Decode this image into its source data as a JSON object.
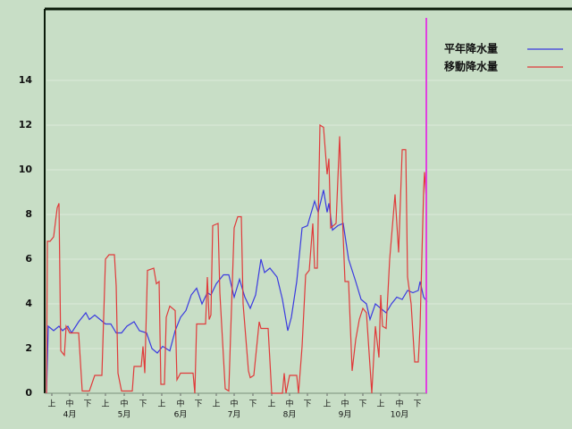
{
  "chart_data": {
    "type": "line",
    "ylim": [
      0,
      17.2
    ],
    "yticks": [
      0,
      2,
      4,
      6,
      8,
      10,
      12,
      14
    ],
    "xlim": [
      0,
      213
    ],
    "xticks": [
      {
        "value": 3,
        "label": "上"
      },
      {
        "value": 13,
        "label": "中"
      },
      {
        "value": 23,
        "label": "下"
      },
      {
        "value": 33,
        "label": "上"
      },
      {
        "value": 43.5,
        "label": "中"
      },
      {
        "value": 54,
        "label": "下"
      },
      {
        "value": 64.5,
        "label": "上"
      },
      {
        "value": 75,
        "label": "中"
      },
      {
        "value": 85,
        "label": "下"
      },
      {
        "value": 95,
        "label": "上"
      },
      {
        "value": 105,
        "label": "中"
      },
      {
        "value": 115.5,
        "label": "下"
      },
      {
        "value": 126,
        "label": "上"
      },
      {
        "value": 136,
        "label": "中"
      },
      {
        "value": 146,
        "label": "下"
      },
      {
        "value": 157,
        "label": "上"
      },
      {
        "value": 167,
        "label": "中"
      },
      {
        "value": 177,
        "label": "下"
      },
      {
        "value": 187,
        "label": "上"
      },
      {
        "value": 197.5,
        "label": "中"
      },
      {
        "value": 207.5,
        "label": "下"
      }
    ],
    "month_ticks": [
      {
        "value": 13,
        "label": "4月"
      },
      {
        "value": 43.5,
        "label": "5月"
      },
      {
        "value": 75,
        "label": "6月"
      },
      {
        "value": 105,
        "label": "7月"
      },
      {
        "value": 136,
        "label": "8月"
      },
      {
        "value": 167,
        "label": "9月"
      },
      {
        "value": 197.5,
        "label": "10月"
      }
    ],
    "grid": true,
    "legend": "top-right",
    "marker": {
      "x": 212.5,
      "color": "#e040e0"
    },
    "series": [
      {
        "name": "平年降水量",
        "color": "#3a3ae0",
        "x": [
          0,
          1,
          4,
          7,
          9,
          12,
          14,
          18,
          22,
          24,
          27,
          30,
          33,
          36,
          39,
          42,
          45,
          49,
          52,
          56,
          59,
          62,
          65,
          69,
          72,
          75,
          78,
          81,
          84,
          87,
          90,
          92,
          95,
          99,
          102,
          105,
          108,
          111,
          114,
          117,
          120,
          122,
          125,
          129,
          132,
          135,
          137,
          140,
          143,
          146,
          150,
          152,
          155,
          157,
          158,
          160,
          163,
          166,
          169,
          173,
          176,
          179,
          181,
          184,
          187,
          190,
          193,
          196,
          199,
          202,
          205,
          208,
          209,
          211,
          213
        ],
        "values": [
          0,
          3.0,
          2.8,
          3.0,
          2.8,
          3.0,
          2.7,
          3.2,
          3.6,
          3.3,
          3.5,
          3.3,
          3.1,
          3.1,
          2.7,
          2.7,
          3.0,
          3.2,
          2.8,
          2.7,
          2.0,
          1.8,
          2.1,
          1.9,
          2.8,
          3.4,
          3.7,
          4.4,
          4.7,
          4.0,
          4.5,
          4.4,
          4.9,
          5.3,
          5.3,
          4.3,
          5.1,
          4.3,
          3.8,
          4.4,
          6.0,
          5.4,
          5.6,
          5.2,
          4.2,
          2.8,
          3.4,
          5.0,
          7.4,
          7.5,
          8.6,
          8.1,
          9.1,
          8.1,
          8.5,
          7.3,
          7.5,
          7.6,
          6.0,
          5.0,
          4.2,
          4.0,
          3.3,
          4.0,
          3.8,
          3.6,
          4.0,
          4.3,
          4.2,
          4.6,
          4.5,
          4.6,
          5.0,
          4.3,
          4.1
        ]
      },
      {
        "name": "移動降水量",
        "color": "#e03a3a",
        "x": [
          0,
          0.5,
          2,
          4,
          6,
          7,
          8,
          10,
          11,
          13,
          18,
          20,
          24,
          27,
          31,
          33,
          35,
          38,
          39,
          40,
          42,
          48,
          49,
          53,
          54,
          55,
          56.5,
          60,
          61.5,
          63,
          64,
          66,
          67,
          69,
          72,
          73,
          75,
          82,
          83,
          84,
          89,
          90,
          91,
          92,
          93,
          96,
          97,
          100,
          102,
          103,
          105,
          107,
          109,
          110,
          113,
          114,
          116,
          119,
          120,
          124,
          126,
          132,
          133,
          134,
          136,
          140,
          141,
          143,
          145,
          147,
          149,
          150,
          151.5,
          153,
          155,
          157,
          158,
          159,
          162,
          164,
          165,
          167,
          169,
          171,
          173,
          175,
          177,
          179,
          182,
          184,
          186,
          187,
          188,
          190,
          192,
          195,
          197,
          199,
          201,
          202,
          204,
          206,
          208,
          209,
          211,
          211.5,
          212.5
        ],
        "values": [
          0,
          6.8,
          6.8,
          7.0,
          8.3,
          8.5,
          1.9,
          1.7,
          3.0,
          2.7,
          2.7,
          0.1,
          0.1,
          0.8,
          0.8,
          6.0,
          6.2,
          6.2,
          4.8,
          0.9,
          0.1,
          0.1,
          1.2,
          1.2,
          2.1,
          0.9,
          5.5,
          5.6,
          4.9,
          5.0,
          0.4,
          0.4,
          3.4,
          3.9,
          3.7,
          0.6,
          0.9,
          0.9,
          0,
          3.1,
          3.1,
          5.2,
          3.3,
          3.5,
          7.5,
          7.6,
          4.5,
          0.2,
          0.1,
          2.6,
          7.4,
          7.9,
          7.9,
          4.0,
          1.0,
          0.7,
          0.8,
          3.2,
          2.9,
          2.9,
          0,
          0,
          0.9,
          0,
          0.8,
          0.8,
          0,
          2.1,
          5.3,
          5.5,
          7.6,
          5.6,
          5.6,
          12.0,
          11.9,
          9.8,
          10.5,
          7.4,
          7.6,
          11.5,
          9.0,
          5.0,
          5.0,
          1.0,
          2.4,
          3.3,
          3.8,
          3.6,
          0,
          3.0,
          1.6,
          4.4,
          3.0,
          2.9,
          6.0,
          8.9,
          6.3,
          10.9,
          10.9,
          5.2,
          4.0,
          1.4,
          1.4,
          3.0,
          9.1,
          9.9,
          8.6
        ]
      }
    ]
  }
}
